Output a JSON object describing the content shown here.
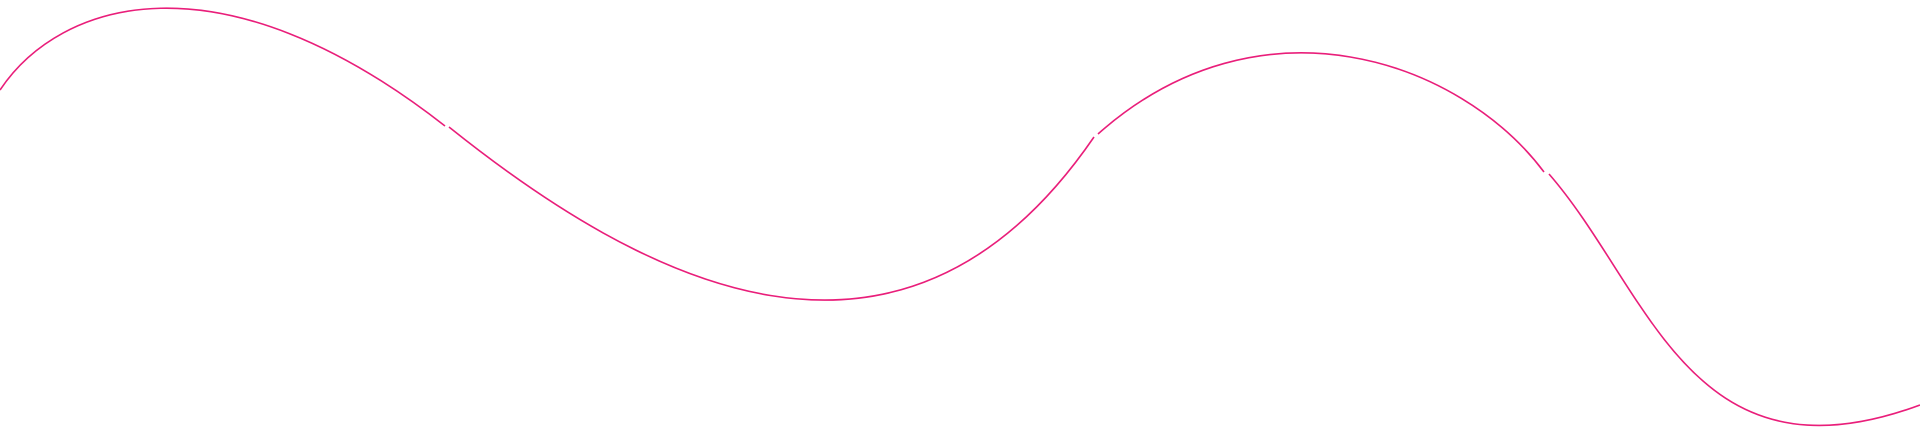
{
  "decoration": {
    "kind": "wavy-line",
    "stroke_color": "#e91e7a",
    "background_color": "#ffffff",
    "segment_count": 4
  }
}
